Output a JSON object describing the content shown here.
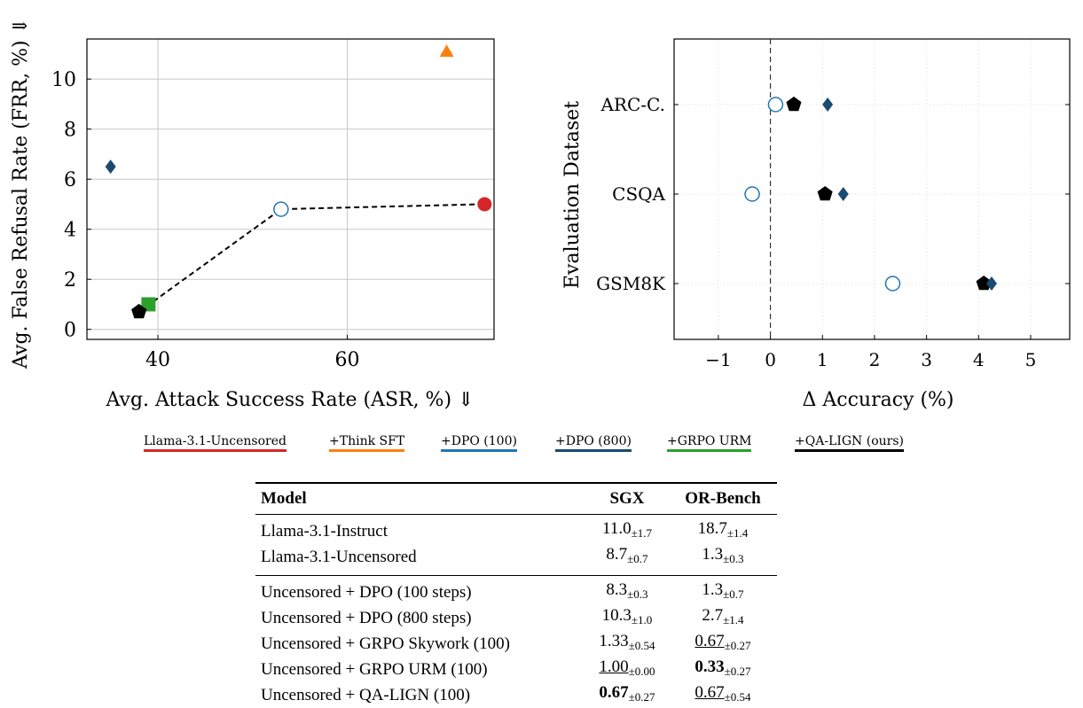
{
  "chart_data": [
    {
      "type": "scatter",
      "xlabel": "Avg. Attack Success Rate (ASR, %) ⇓",
      "ylabel": "Avg. False Refusal Rate (FRR, %) ⇓",
      "xlim": [
        32.5,
        75.5
      ],
      "ylim": [
        -0.4,
        11.6
      ],
      "xticks": [
        40,
        60
      ],
      "yticks": [
        0,
        2,
        4,
        6,
        8,
        10
      ],
      "grid": true,
      "points": [
        {
          "series": "Llama-3.1-Uncensored",
          "x": 74.5,
          "y": 5.0,
          "marker": "circle"
        },
        {
          "series": "+Think SFT",
          "x": 70.5,
          "y": 11.1,
          "marker": "triangle"
        },
        {
          "series": "+DPO (100)",
          "x": 53.0,
          "y": 4.8,
          "marker": "circle-open"
        },
        {
          "series": "+DPO (800)",
          "x": 35.0,
          "y": 6.5,
          "marker": "diamond"
        },
        {
          "series": "+GRPO URM",
          "x": 39.0,
          "y": 1.0,
          "marker": "square"
        },
        {
          "series": "+QA-LIGN (ours)",
          "x": 38.0,
          "y": 0.7,
          "marker": "pentagon"
        }
      ],
      "dashed_path": [
        [
          38.0,
          0.7
        ],
        [
          53.0,
          4.8
        ],
        [
          74.5,
          5.0
        ]
      ]
    },
    {
      "type": "scatter",
      "xlabel": "Δ Accuracy (%)",
      "ylabel": "Evaluation Dataset",
      "xlim": [
        -1.85,
        5.75
      ],
      "xticks": [
        -1,
        0,
        1,
        2,
        3,
        4,
        5
      ],
      "categories": [
        "ARC-C.",
        "CSQA",
        "GSM8K"
      ],
      "reference_line_x": 0,
      "grid": true,
      "series": [
        {
          "name": "+DPO (100)",
          "marker": "circle-open",
          "values": [
            0.1,
            -0.35,
            2.35
          ]
        },
        {
          "name": "+QA-LIGN (ours)",
          "marker": "pentagon",
          "values": [
            0.45,
            1.05,
            4.1
          ]
        },
        {
          "name": "+DPO (800)",
          "marker": "diamond",
          "values": [
            1.1,
            1.4,
            4.25
          ]
        }
      ]
    }
  ],
  "colors": {
    "Llama-3.1-Uncensored": "#d62728",
    "+Think SFT": "#ff7f0e",
    "+DPO (100)": "#1f77b4",
    "+DPO (800)": "#1b4a73",
    "+GRPO URM": "#2ca02c",
    "+QA-LIGN (ours)": "#000000"
  },
  "legend": [
    {
      "label": "Llama-3.1-Uncensored",
      "color": "#d62728"
    },
    {
      "label": "+Think SFT",
      "color": "#ff7f0e"
    },
    {
      "label": "+DPO (100)",
      "color": "#1f77b4"
    },
    {
      "label": "+DPO (800)",
      "color": "#1b4a73"
    },
    {
      "label": "+GRPO URM",
      "color": "#2ca02c"
    },
    {
      "label": "+QA-LIGN (ours)",
      "color": "#000000"
    }
  ],
  "table": {
    "headers": [
      "Model",
      "SGX",
      "OR-Bench"
    ],
    "rows": [
      {
        "model": "Llama-3.1-Instruct",
        "sgx": "11.0",
        "sgx_std": "±1.7",
        "or": "18.7",
        "or_std": "±1.4"
      },
      {
        "model": "Llama-3.1-Uncensored",
        "sgx": "8.7",
        "sgx_std": "±0.7",
        "or": "1.3",
        "or_std": "±0.3"
      },
      {
        "model": "Uncensored + DPO (100 steps)",
        "sgx": "8.3",
        "sgx_std": "±0.3",
        "or": "1.3",
        "or_std": "±0.7"
      },
      {
        "model": "Uncensored + DPO (800 steps)",
        "sgx": "10.3",
        "sgx_std": "±1.0",
        "or": "2.7",
        "or_std": "±1.4"
      },
      {
        "model": "Uncensored + GRPO Skywork (100)",
        "sgx": "1.33",
        "sgx_std": "±0.54",
        "or": "0.67",
        "or_std": "±0.27"
      },
      {
        "model": "Uncensored + GRPO URM (100)",
        "sgx": "1.00",
        "sgx_std": "±0.00",
        "or": "0.33",
        "or_std": "±0.27"
      },
      {
        "model_prefix": "Uncensored + ",
        "model_sc": "QA-LIGN",
        "model_suffix": " (100)",
        "sgx": "0.67",
        "sgx_std": "±0.27",
        "or": "0.67",
        "or_std": "±0.54"
      }
    ]
  }
}
